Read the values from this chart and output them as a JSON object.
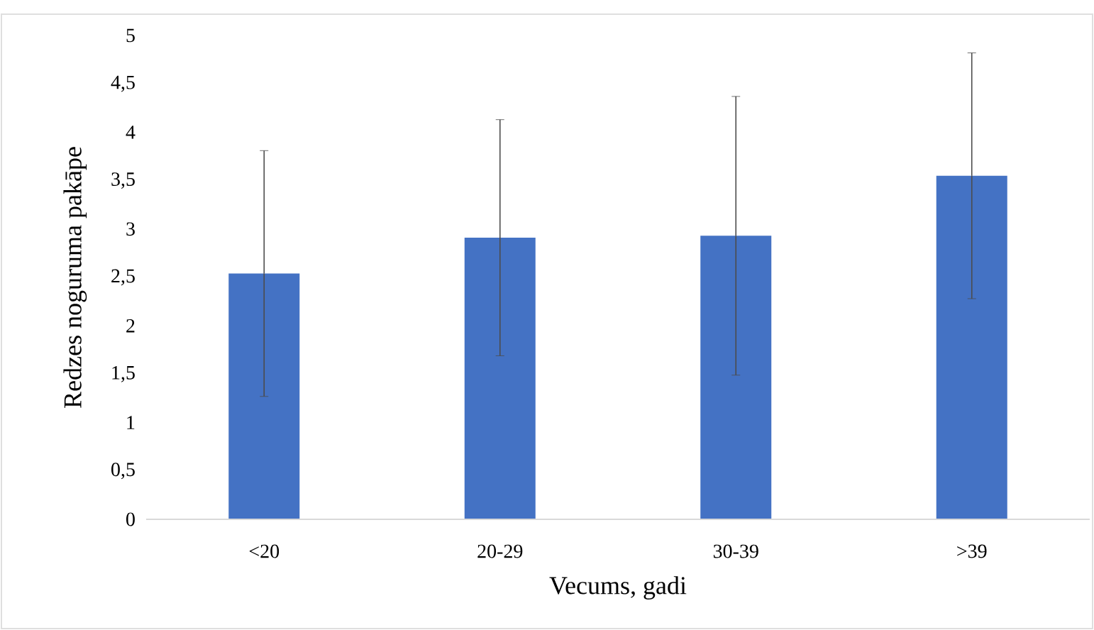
{
  "chart_data": {
    "type": "bar",
    "xlabel": "Vecums, gadi",
    "ylabel": "Redzes noguruma pakāpe",
    "categories": [
      "<20",
      "20-29",
      "30-39",
      ">39"
    ],
    "values": [
      2.54,
      2.91,
      2.93,
      3.55
    ],
    "errors": [
      1.27,
      1.22,
      1.44,
      1.27
    ],
    "color": "#4472c4",
    "ylim": [
      0,
      5
    ],
    "yticks": [
      0,
      {
        "value": 0.5,
        "label": "0,5"
      },
      1,
      {
        "value": 1.5,
        "label": "1,5"
      },
      2,
      {
        "value": 2.5,
        "label": "2,5"
      },
      3,
      {
        "value": 3.5,
        "label": "3,5"
      },
      4,
      {
        "value": 4.5,
        "label": "4,5"
      },
      5
    ]
  }
}
